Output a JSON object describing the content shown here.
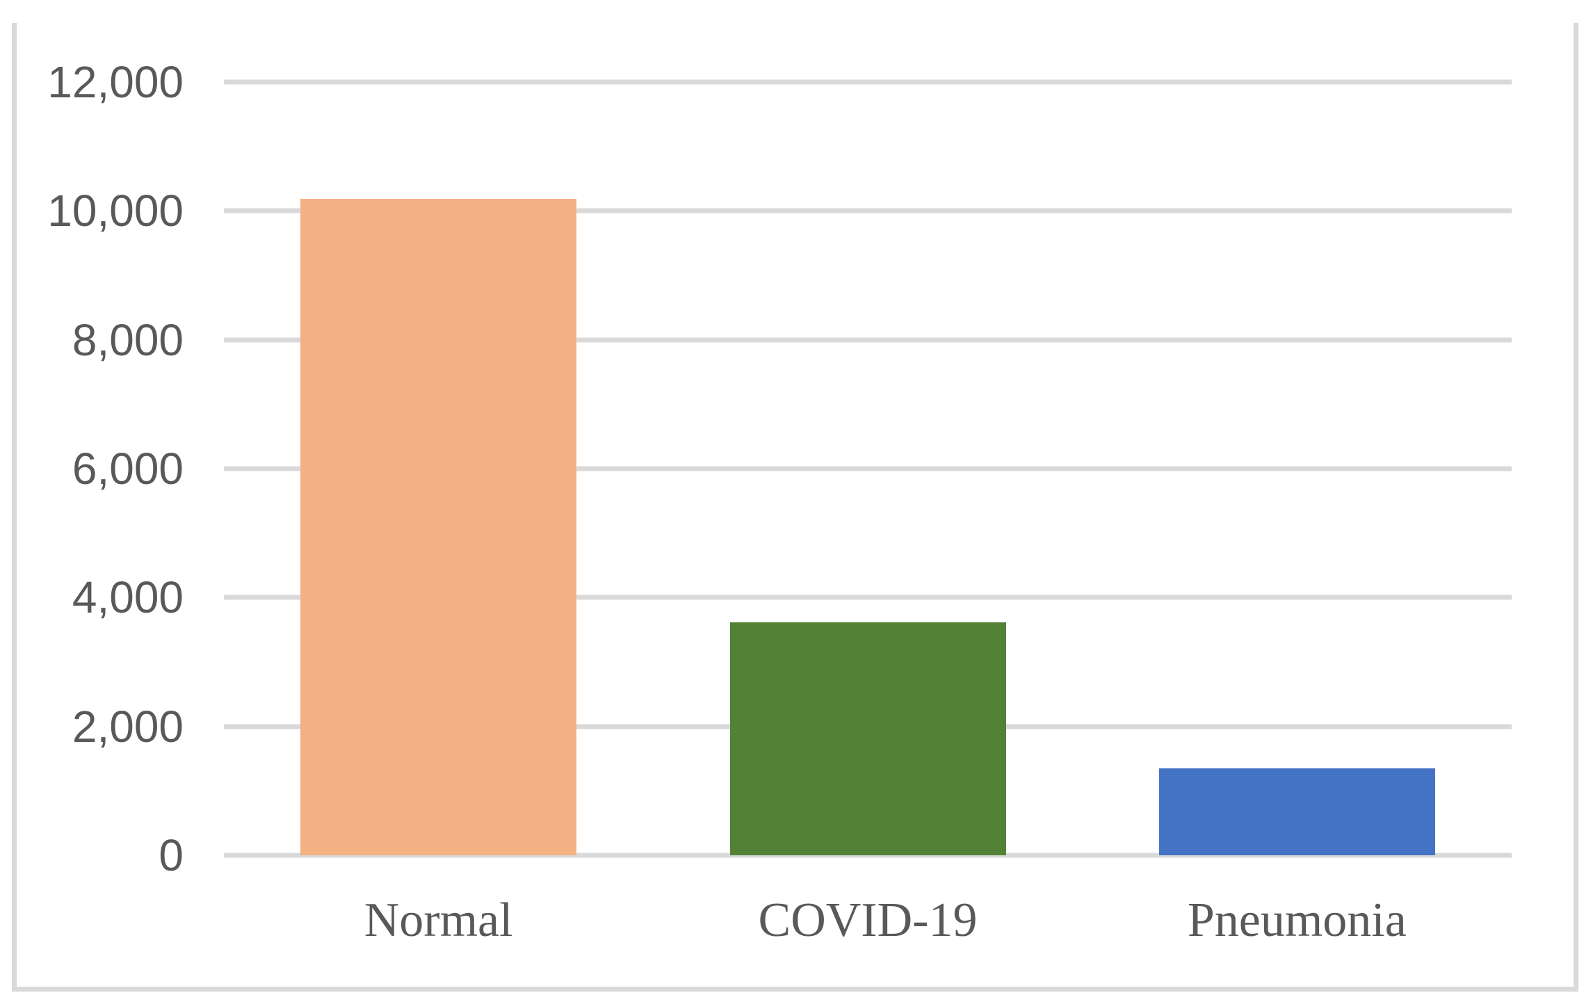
{
  "chart_data": {
    "type": "bar",
    "title": "",
    "xlabel": "",
    "ylabel": "",
    "categories": [
      "Normal",
      "COVID-19",
      "Pneumonia"
    ],
    "values": [
      10192,
      3616,
      1345
    ],
    "bar_colors": [
      "#F4B183",
      "#538135",
      "#4472C4"
    ],
    "ylim": [
      0,
      12000
    ],
    "y_ticks": [
      {
        "value": 12000,
        "label": "12,000"
      },
      {
        "value": 10000,
        "label": "10,000"
      },
      {
        "value": 8000,
        "label": "8,000"
      },
      {
        "value": 6000,
        "label": "6,000"
      },
      {
        "value": 4000,
        "label": "4,000"
      },
      {
        "value": 2000,
        "label": "2,000"
      },
      {
        "value": 0,
        "label": "0"
      }
    ],
    "grid": "horizontal",
    "legend": "none"
  },
  "colors": {
    "gridline": "#d9d9d9",
    "frame_border": "#d9d9d9",
    "axis_text": "#595959"
  }
}
